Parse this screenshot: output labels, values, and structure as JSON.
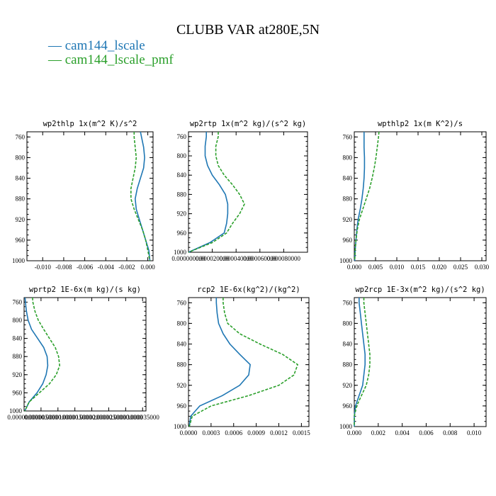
{
  "figure": {
    "title": "CLUBB VAR at280E,5N",
    "legend": [
      {
        "label": "— cam144_lscale",
        "color": "#1f77b4"
      },
      {
        "label": "— cam144_lscale_pmf",
        "color": "#2ca02c"
      }
    ]
  },
  "chart_data": [
    {
      "type": "line",
      "title": "wp2thlp  1x(m^2 K)/s^2",
      "xlim": [
        -0.0115,
        0.0005
      ],
      "ylim": [
        1000,
        750
      ],
      "xticks": [
        "-0.010",
        "-0.008",
        "-0.006",
        "-0.004",
        "-0.002",
        "0.000"
      ],
      "xtick_values": [
        -0.01,
        -0.008,
        -0.006,
        -0.004,
        -0.002,
        0.0
      ],
      "yticks": [
        760,
        800,
        840,
        880,
        920,
        960,
        1000
      ],
      "series": [
        {
          "name": "cam144_lscale",
          "color": "#1f77b4",
          "dashed": false,
          "y": [
            750,
            760,
            780,
            800,
            820,
            840,
            860,
            880,
            900,
            920,
            940,
            960,
            980,
            1000
          ],
          "x": [
            -0.0007,
            -0.0006,
            -0.0004,
            -0.0003,
            -0.0004,
            -0.0007,
            -0.001,
            -0.0012,
            -0.0011,
            -0.0008,
            -0.0005,
            -0.0002,
            0.0001,
            0.0002
          ]
        },
        {
          "name": "cam144_lscale_pmf",
          "color": "#2ca02c",
          "dashed": true,
          "y": [
            750,
            760,
            780,
            800,
            820,
            840,
            860,
            880,
            900,
            920,
            940,
            960,
            980,
            1000
          ],
          "x": [
            -0.0013,
            -0.0013,
            -0.0012,
            -0.0011,
            -0.0012,
            -0.0014,
            -0.0016,
            -0.0016,
            -0.0013,
            -0.0009,
            -0.0005,
            -0.0002,
            0.0,
            0.0002
          ]
        }
      ]
    },
    {
      "type": "line",
      "title": "wp2rtp  1x(m^2 kg)/(s^2 kg)",
      "xlim": [
        0.0,
        0.0001
      ],
      "ylim": [
        1000,
        750
      ],
      "xticks": [
        "0.000000000",
        "0.000020000",
        "0.000040000",
        "0.000060000",
        "0.000080000"
      ],
      "xtick_values": [
        0.0,
        2e-05,
        4e-05,
        6e-05,
        8e-05
      ],
      "yticks": [
        760,
        800,
        840,
        880,
        920,
        960,
        1000
      ],
      "series": [
        {
          "name": "cam144_lscale",
          "color": "#1f77b4",
          "dashed": false,
          "y": [
            750,
            760,
            780,
            800,
            820,
            840,
            860,
            880,
            900,
            920,
            940,
            960,
            980,
            1000
          ],
          "x": [
            1.5e-05,
            1.5e-05,
            1.4e-05,
            1.4e-05,
            1.6e-05,
            2e-05,
            2.6e-05,
            3.1e-05,
            3.3e-05,
            3.3e-05,
            3.2e-05,
            3e-05,
            1.8e-05,
            0.0
          ]
        },
        {
          "name": "cam144_lscale_pmf",
          "color": "#2ca02c",
          "dashed": true,
          "y": [
            750,
            760,
            780,
            800,
            820,
            840,
            860,
            880,
            900,
            920,
            940,
            960,
            980,
            1000
          ],
          "x": [
            2.5e-05,
            2.5e-05,
            2.3e-05,
            2.3e-05,
            2.5e-05,
            3e-05,
            3.7e-05,
            4.3e-05,
            4.7e-05,
            4.3e-05,
            3.7e-05,
            3.2e-05,
            2e-05,
            0.0
          ]
        }
      ]
    },
    {
      "type": "line",
      "title": "wpthlp2  1x(m K^2)/s",
      "xlim": [
        0.0,
        0.031
      ],
      "ylim": [
        1000,
        750
      ],
      "xticks": [
        "0.000",
        "0.005",
        "0.010",
        "0.015",
        "0.020",
        "0.025",
        "0.030"
      ],
      "xtick_values": [
        0.0,
        0.005,
        0.01,
        0.015,
        0.02,
        0.025,
        0.03
      ],
      "yticks": [
        760,
        800,
        840,
        880,
        920,
        960,
        1000
      ],
      "series": [
        {
          "name": "cam144_lscale",
          "color": "#1f77b4",
          "dashed": false,
          "y": [
            750,
            760,
            780,
            800,
            820,
            840,
            860,
            880,
            900,
            920,
            940,
            960,
            980,
            1000
          ],
          "x": [
            0.0023,
            0.0023,
            0.0023,
            0.0024,
            0.0024,
            0.0023,
            0.0021,
            0.0018,
            0.0014,
            0.0009,
            0.0006,
            0.0004,
            0.0002,
            0.0001
          ]
        },
        {
          "name": "cam144_lscale_pmf",
          "color": "#2ca02c",
          "dashed": true,
          "y": [
            750,
            760,
            780,
            800,
            820,
            840,
            860,
            880,
            900,
            920,
            940,
            960,
            980,
            1000
          ],
          "x": [
            0.0058,
            0.0057,
            0.0054,
            0.0051,
            0.0047,
            0.0042,
            0.0036,
            0.0028,
            0.002,
            0.0012,
            0.0007,
            0.0004,
            0.0002,
            0.0001
          ]
        }
      ]
    },
    {
      "type": "line",
      "title": "wprtp2  1E-6x(m kg)/(s kg)",
      "xlim": [
        0.0,
        3.6e-05
      ],
      "ylim": [
        1000,
        750
      ],
      "xticks": [
        "0.000000000",
        "0.000005000",
        "0.000010000",
        "0.000015000",
        "0.000020000",
        "0.000025000",
        "0.000030000",
        "0.000035000"
      ],
      "xtick_values": [
        0.0,
        5e-06,
        1e-05,
        1.5e-05,
        2e-05,
        2.5e-05,
        3e-05,
        3.5e-05
      ],
      "yticks": [
        760,
        800,
        840,
        880,
        920,
        960,
        1000
      ],
      "series": [
        {
          "name": "cam144_lscale",
          "color": "#1f77b4",
          "dashed": false,
          "y": [
            750,
            760,
            780,
            800,
            820,
            840,
            860,
            880,
            900,
            920,
            940,
            960,
            980,
            1000
          ],
          "x": [
            3e-07,
            4e-07,
            7e-07,
            1.2e-06,
            2.2e-06,
            4e-06,
            5.8e-06,
            6.8e-06,
            7e-06,
            6.5e-06,
            5.5e-06,
            3.8e-06,
            1.5e-06,
            2e-07
          ]
        },
        {
          "name": "cam144_lscale_pmf",
          "color": "#2ca02c",
          "dashed": true,
          "y": [
            750,
            760,
            780,
            800,
            820,
            840,
            860,
            880,
            900,
            920,
            940,
            960,
            980,
            1000
          ],
          "x": [
            2.5e-06,
            2.6e-06,
            3.2e-06,
            4.2e-06,
            5.8e-06,
            7.5e-06,
            9.2e-06,
            1.02e-05,
            1.05e-05,
            9.5e-06,
            7.5e-06,
            4.5e-06,
            1.5e-06,
            2e-07
          ]
        }
      ]
    },
    {
      "type": "line",
      "title": "rcp2  1E-6x(kg^2)/(kg^2)",
      "xlim": [
        0.0,
        0.0016
      ],
      "ylim": [
        1000,
        750
      ],
      "xticks": [
        "0.0000",
        "0.0003",
        "0.0006",
        "0.0009",
        "0.0012",
        "0.0015"
      ],
      "xtick_values": [
        0.0,
        0.0003,
        0.0006,
        0.0009,
        0.0012,
        0.0015
      ],
      "yticks": [
        760,
        800,
        840,
        880,
        920,
        960,
        1000
      ],
      "series": [
        {
          "name": "cam144_lscale",
          "color": "#1f77b4",
          "dashed": false,
          "y": [
            750,
            760,
            780,
            800,
            820,
            840,
            860,
            880,
            900,
            920,
            940,
            960,
            980,
            1000
          ],
          "x": [
            0.00037,
            0.00037,
            0.00038,
            0.0004,
            0.00046,
            0.00055,
            0.00068,
            0.00082,
            0.0008,
            0.00068,
            0.00045,
            0.00015,
            3e-05,
            1e-05
          ]
        },
        {
          "name": "cam144_lscale_pmf",
          "color": "#2ca02c",
          "dashed": true,
          "y": [
            750,
            760,
            780,
            800,
            820,
            840,
            860,
            880,
            900,
            920,
            940,
            960,
            980,
            1000
          ],
          "x": [
            0.00046,
            0.00046,
            0.00048,
            0.00052,
            0.00068,
            0.00095,
            0.00125,
            0.00145,
            0.0014,
            0.0012,
            0.0008,
            0.0003,
            5e-05,
            1e-05
          ]
        }
      ]
    },
    {
      "type": "line",
      "title": "wp2rcp  1E-3x(m^2 kg)/(s^2 kg)",
      "xlim": [
        0.0,
        0.011
      ],
      "ylim": [
        1000,
        750
      ],
      "xticks": [
        "0.000",
        "0.002",
        "0.004",
        "0.006",
        "0.008",
        "0.010"
      ],
      "xtick_values": [
        0.0,
        0.002,
        0.004,
        0.006,
        0.008,
        0.01
      ],
      "yticks": [
        760,
        800,
        840,
        880,
        920,
        960,
        1000
      ],
      "series": [
        {
          "name": "cam144_lscale",
          "color": "#1f77b4",
          "dashed": false,
          "y": [
            750,
            760,
            780,
            800,
            820,
            840,
            860,
            880,
            900,
            920,
            940,
            960,
            980,
            1000
          ],
          "x": [
            0.0004,
            0.0004,
            0.0005,
            0.0006,
            0.0007,
            0.0008,
            0.0009,
            0.0009,
            0.0008,
            0.0007,
            0.0004,
            0.0001,
            0.0,
            0.0
          ]
        },
        {
          "name": "cam144_lscale_pmf",
          "color": "#2ca02c",
          "dashed": true,
          "y": [
            750,
            760,
            780,
            800,
            820,
            840,
            860,
            880,
            900,
            920,
            940,
            960,
            980,
            1000
          ],
          "x": [
            0.0008,
            0.0008,
            0.0009,
            0.001,
            0.0011,
            0.0012,
            0.0013,
            0.0013,
            0.0012,
            0.001,
            0.0006,
            0.0002,
            0.0,
            0.0
          ]
        }
      ]
    }
  ]
}
